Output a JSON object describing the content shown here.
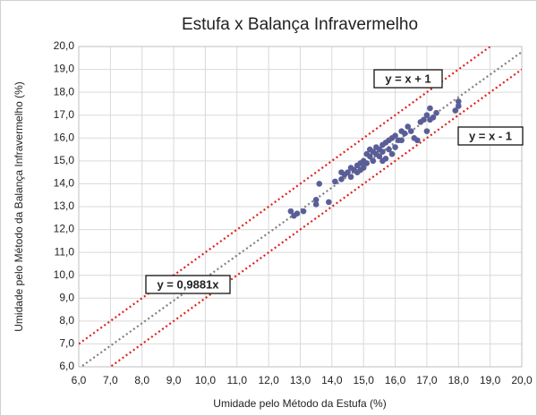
{
  "chart_data": {
    "type": "scatter",
    "title": "Estufa x Balança Infravermelho",
    "xlabel": "Umidade pelo Método da Estufa (%)",
    "ylabel": "Umidade pelo Método da Balança Infravermelho (%)",
    "color": "#5a5e98",
    "x": [
      12.7,
      12.8,
      12.9,
      13.1,
      13.5,
      13.5,
      13.6,
      13.9,
      14.1,
      14.3,
      14.3,
      14.4,
      14.5,
      14.6,
      14.6,
      14.7,
      14.8,
      14.8,
      14.9,
      15.0,
      15.0,
      15.1,
      15.1,
      15.2,
      15.2,
      15.3,
      15.3,
      15.4,
      15.4,
      15.5,
      15.5,
      15.6,
      15.6,
      15.7,
      15.7,
      15.8,
      15.8,
      15.9,
      15.9,
      16.0,
      16.0,
      16.1,
      16.2,
      16.3,
      16.4,
      16.5,
      16.6,
      16.7,
      16.8,
      16.9,
      17.0,
      17.0,
      17.1,
      17.2,
      17.3,
      17.9,
      18.0,
      18.0,
      15.0,
      14.9,
      15.6,
      16.2,
      17.1
    ],
    "values": [
      12.8,
      12.6,
      12.7,
      12.8,
      13.3,
      13.1,
      14.0,
      13.2,
      14.1,
      14.2,
      14.5,
      14.4,
      14.5,
      14.7,
      14.3,
      14.6,
      14.8,
      14.5,
      14.9,
      14.7,
      15.0,
      15.3,
      14.9,
      15.2,
      15.5,
      15.0,
      15.4,
      15.3,
      15.6,
      15.2,
      15.5,
      15.7,
      15.4,
      15.1,
      15.8,
      15.5,
      15.9,
      16.0,
      15.3,
      16.1,
      15.6,
      15.9,
      16.3,
      16.2,
      16.5,
      16.3,
      16.0,
      15.9,
      16.7,
      16.8,
      17.0,
      16.3,
      17.3,
      16.9,
      17.1,
      17.2,
      17.6,
      17.4,
      14.9,
      14.6,
      15.0,
      15.9,
      16.8
    ],
    "lines": [
      {
        "label": "y = x + 1",
        "slope": 1,
        "intercept": 1,
        "color": "#e0201c"
      },
      {
        "label": "y = x - 1",
        "slope": 1,
        "intercept": -1,
        "color": "#e0201c"
      },
      {
        "label": "y = 0,9881x",
        "slope": 0.9881,
        "intercept": 0,
        "color": "#808080"
      }
    ],
    "xlim": [
      6,
      20
    ],
    "ylim": [
      6,
      20
    ],
    "grid": true,
    "xticks": [
      {
        "value": 6,
        "label": "6,0"
      },
      {
        "value": 7,
        "label": "7,0"
      },
      {
        "value": 8,
        "label": "8,0"
      },
      {
        "value": 9,
        "label": "9,0"
      },
      {
        "value": 10,
        "label": "10,0"
      },
      {
        "value": 11,
        "label": "11,0"
      },
      {
        "value": 12,
        "label": "12,0"
      },
      {
        "value": 13,
        "label": "13,0"
      },
      {
        "value": 14,
        "label": "14,0"
      },
      {
        "value": 15,
        "label": "15,0"
      },
      {
        "value": 16,
        "label": "16,0"
      },
      {
        "value": 17,
        "label": "17,0"
      },
      {
        "value": 18,
        "label": "18,0"
      },
      {
        "value": 19,
        "label": "19,0"
      },
      {
        "value": 20,
        "label": "20,0"
      }
    ],
    "yticks": [
      {
        "value": 6,
        "label": "6,0"
      },
      {
        "value": 7,
        "label": "7,0"
      },
      {
        "value": 8,
        "label": "8,0"
      },
      {
        "value": 9,
        "label": "9,0"
      },
      {
        "value": 10,
        "label": "10,0"
      },
      {
        "value": 11,
        "label": "11,0"
      },
      {
        "value": 12,
        "label": "12,0"
      },
      {
        "value": 13,
        "label": "13,0"
      },
      {
        "value": 14,
        "label": "14,0"
      },
      {
        "value": 15,
        "label": "15,0"
      },
      {
        "value": 16,
        "label": "16,0"
      },
      {
        "value": 17,
        "label": "17,0"
      },
      {
        "value": 18,
        "label": "18,0"
      },
      {
        "value": 19,
        "label": "19,0"
      },
      {
        "value": 20,
        "label": "20,0"
      }
    ]
  }
}
